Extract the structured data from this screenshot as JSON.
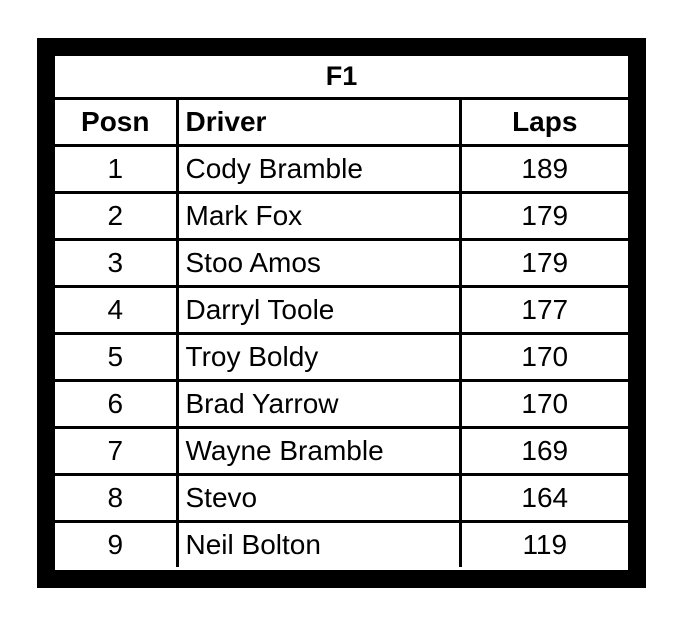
{
  "title": "F1",
  "headers": [
    "Posn",
    "Driver",
    "Laps"
  ],
  "rows": [
    [
      "1",
      "Cody Bramble",
      "189"
    ],
    [
      "2",
      "Mark Fox",
      "179"
    ],
    [
      "3",
      "Stoo Amos",
      "179"
    ],
    [
      "4",
      "Darryl Toole",
      "177"
    ],
    [
      "5",
      "Troy Boldy",
      "170"
    ],
    [
      "6",
      "Brad Yarrow",
      "170"
    ],
    [
      "7",
      "Wayne Bramble",
      "169"
    ],
    [
      "8",
      "Stevo",
      "164"
    ],
    [
      "9",
      "Neil Bolton",
      "119"
    ]
  ]
}
